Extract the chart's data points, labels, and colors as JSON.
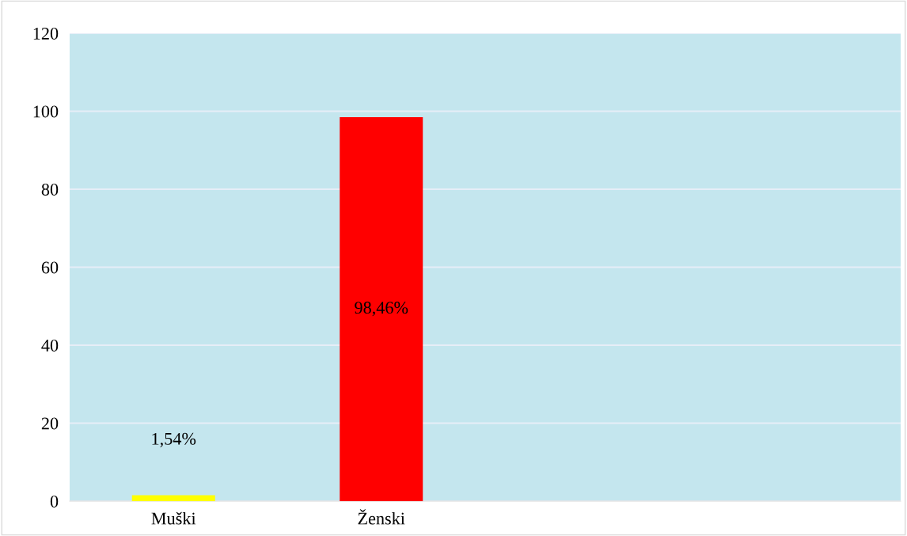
{
  "chart_data": {
    "type": "bar",
    "categories": [
      "Muški",
      "Ženski",
      null,
      null
    ],
    "values": [
      1.54,
      98.46,
      null,
      null
    ],
    "colors": [
      "#ffff00",
      "#ff0000",
      null,
      null
    ],
    "value_labels": [
      "1,54%",
      "98,46%",
      null,
      null
    ],
    "ylim": [
      0,
      120
    ],
    "yticks": [
      0,
      20,
      40,
      60,
      80,
      100,
      120
    ],
    "grid": "y"
  }
}
